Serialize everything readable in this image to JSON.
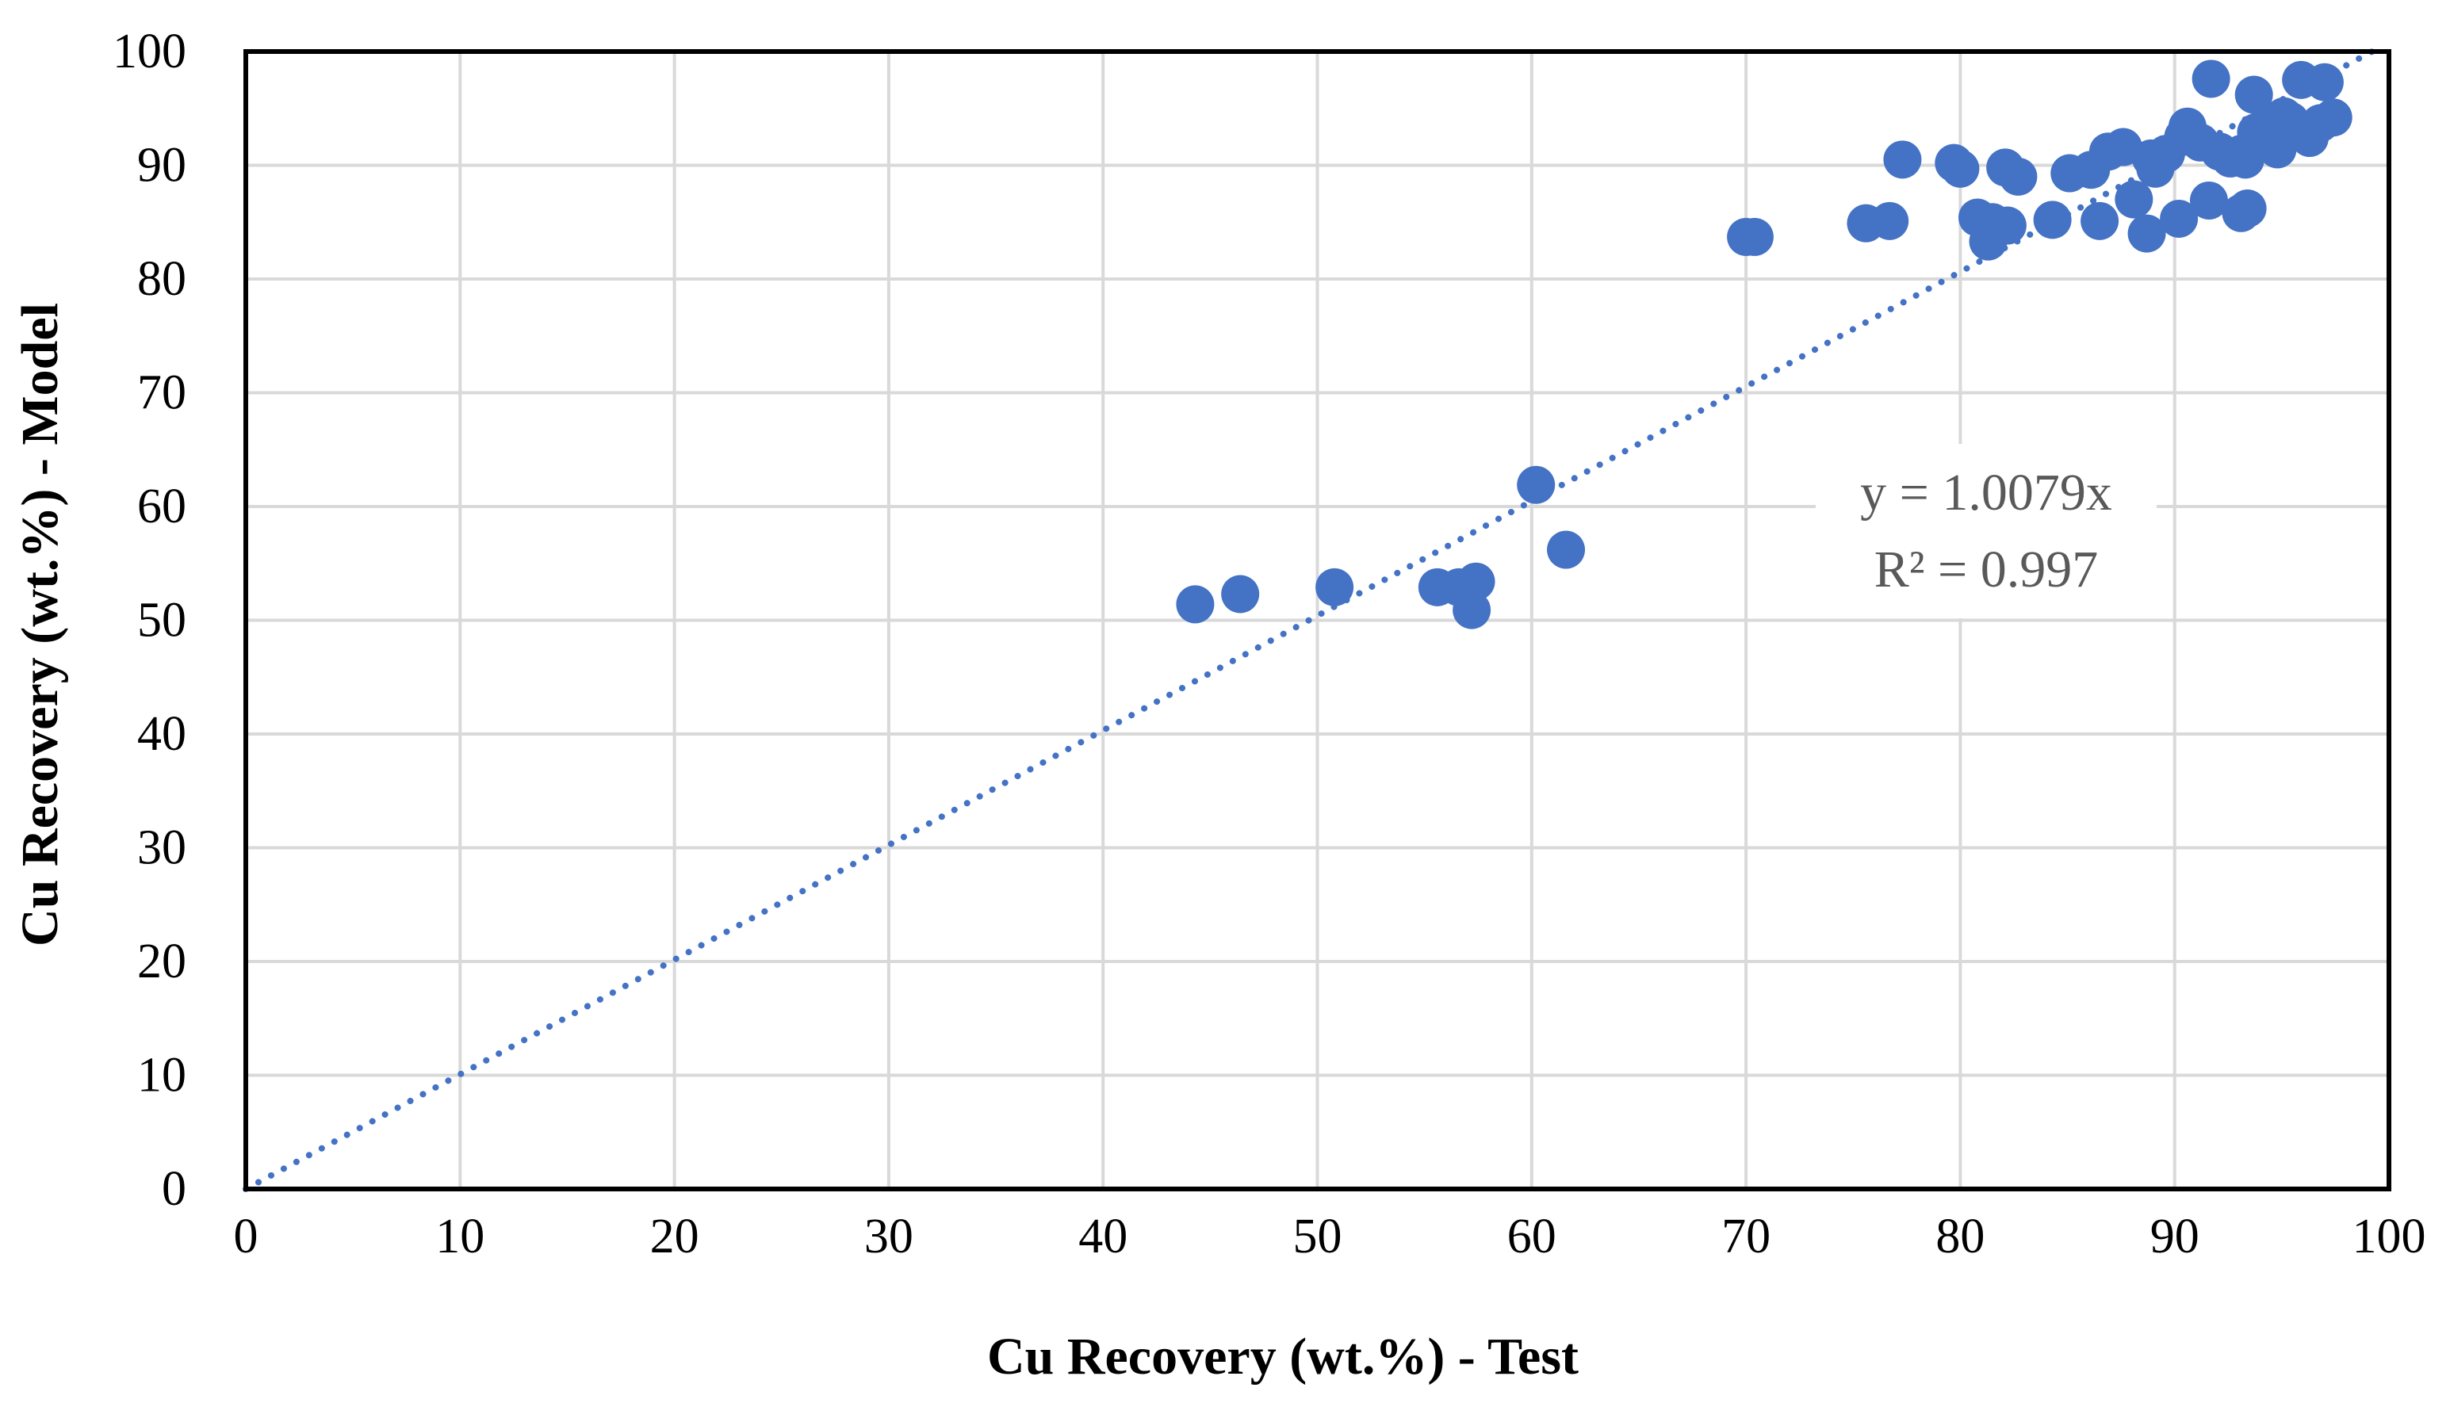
{
  "chart_data": {
    "type": "scatter",
    "title": "",
    "xlabel": "Cu Recovery (wt.%) - Test",
    "ylabel": "Cu Recovery (wt.%) - Model",
    "xlim": [
      0,
      100
    ],
    "ylim": [
      0,
      100
    ],
    "xticks": [
      0,
      10,
      20,
      30,
      40,
      50,
      60,
      70,
      80,
      90,
      100
    ],
    "yticks": [
      0,
      10,
      20,
      30,
      40,
      50,
      60,
      70,
      80,
      90,
      100
    ],
    "grid": true,
    "colors": {
      "marker": "#4472C4",
      "trendline": "#4472C4",
      "grid": "#D9D9D9",
      "frame": "#000000",
      "annotation": "#595959"
    },
    "series": [
      {
        "name": "Cu Recovery",
        "points": [
          [
            44.3,
            51.4
          ],
          [
            46.4,
            52.3
          ],
          [
            50.8,
            52.9
          ],
          [
            55.6,
            52.9
          ],
          [
            56.6,
            52.9
          ],
          [
            57.4,
            53.4
          ],
          [
            57.2,
            50.9
          ],
          [
            60.2,
            61.9
          ],
          [
            61.6,
            56.2
          ],
          [
            70.0,
            83.7
          ],
          [
            70.4,
            83.7
          ],
          [
            75.6,
            84.9
          ],
          [
            76.7,
            85.1
          ],
          [
            77.3,
            90.5
          ],
          [
            79.7,
            90.2
          ],
          [
            80.0,
            89.7
          ],
          [
            80.8,
            85.4
          ],
          [
            81.5,
            85.0
          ],
          [
            81.3,
            83.3
          ],
          [
            82.2,
            84.7
          ],
          [
            82.1,
            89.8
          ],
          [
            82.7,
            89.0
          ],
          [
            84.3,
            85.2
          ],
          [
            85.1,
            89.3
          ],
          [
            86.1,
            89.6
          ],
          [
            86.5,
            85.1
          ],
          [
            86.9,
            91.2
          ],
          [
            87.6,
            91.6
          ],
          [
            88.1,
            87.0
          ],
          [
            88.7,
            84.0
          ],
          [
            88.9,
            90.6
          ],
          [
            89.1,
            89.7
          ],
          [
            89.6,
            91.0
          ],
          [
            90.2,
            85.3
          ],
          [
            90.4,
            92.5
          ],
          [
            90.6,
            93.4
          ],
          [
            91.2,
            92.0
          ],
          [
            91.7,
            97.6
          ],
          [
            91.6,
            86.9
          ],
          [
            92.1,
            91.2
          ],
          [
            92.6,
            90.6
          ],
          [
            93.1,
            85.8
          ],
          [
            93.1,
            91.0
          ],
          [
            93.3,
            90.5
          ],
          [
            93.4,
            86.2
          ],
          [
            93.8,
            92.9
          ],
          [
            93.7,
            96.2
          ],
          [
            94.4,
            93.6
          ],
          [
            94.8,
            91.4
          ],
          [
            95.1,
            94.3
          ],
          [
            95.4,
            93.9
          ],
          [
            95.9,
            97.5
          ],
          [
            96.3,
            92.4
          ],
          [
            96.8,
            93.7
          ],
          [
            97.0,
            97.3
          ],
          [
            97.4,
            94.2
          ]
        ]
      }
    ],
    "trendline": {
      "style": "dotted",
      "slope": 1.0079,
      "x_range": [
        0,
        100
      ]
    },
    "annotations": [
      "y = 1.0079x",
      "R² = 0.997"
    ]
  }
}
